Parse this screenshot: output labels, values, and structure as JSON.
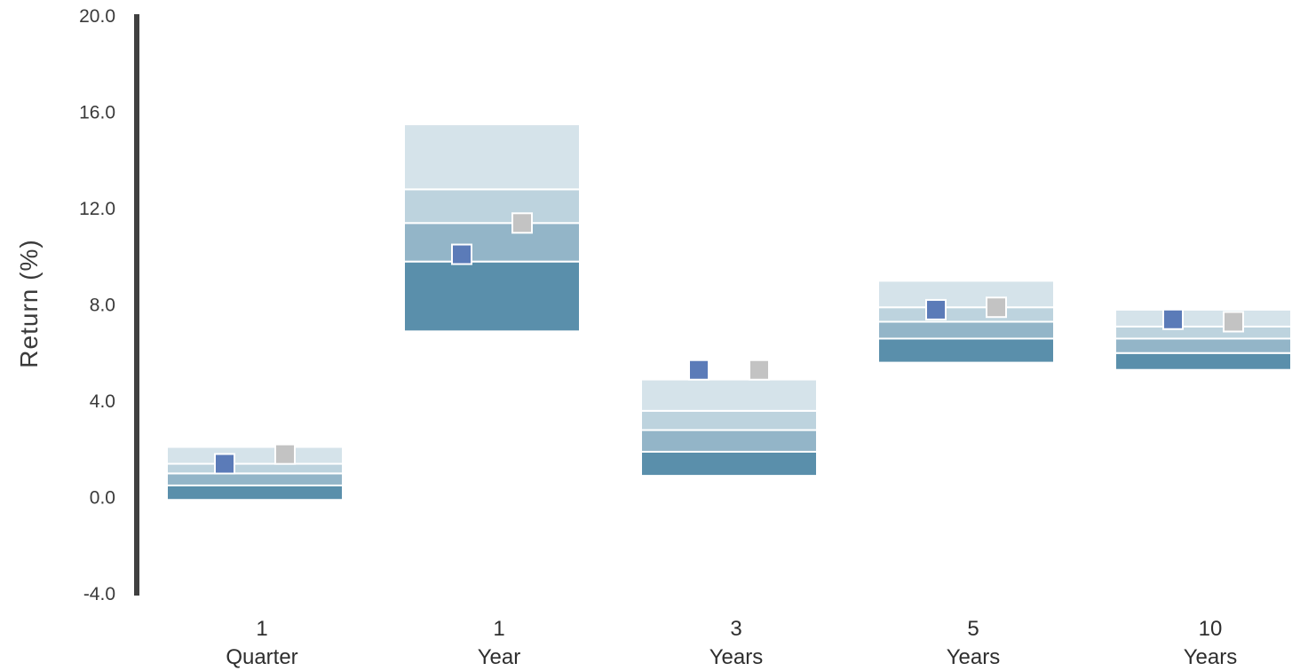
{
  "chart_data": {
    "type": "floating-bar",
    "title": "",
    "xlabel": "",
    "ylabel": "Return (%)",
    "ylim": [
      -4.0,
      20.0
    ],
    "yticks": [
      "-4.0",
      "0.0",
      "4.0",
      "8.0",
      "12.0",
      "16.0",
      "20.0"
    ],
    "grid": false,
    "legend": "none",
    "categories": [
      {
        "line1": "1",
        "line2": "Quarter"
      },
      {
        "line1": "1",
        "line2": "Year"
      },
      {
        "line1": "3",
        "line2": "Years"
      },
      {
        "line1": "5",
        "line2": "Years"
      },
      {
        "line1": "10",
        "line2": "Years"
      }
    ],
    "ranges": [
      {
        "bounds": [
          -0.1,
          0.5,
          1.0,
          1.4,
          2.1
        ]
      },
      {
        "bounds": [
          6.9,
          9.8,
          11.4,
          12.8,
          15.5
        ]
      },
      {
        "bounds": [
          0.9,
          1.9,
          2.8,
          3.6,
          4.9
        ]
      },
      {
        "bounds": [
          5.6,
          6.6,
          7.3,
          7.9,
          9.0
        ]
      },
      {
        "bounds": [
          5.3,
          6.0,
          6.6,
          7.1,
          7.8
        ]
      }
    ],
    "series": [
      {
        "marker": "square",
        "color": "#5b7bb8",
        "values": [
          1.4,
          10.1,
          5.3,
          7.8,
          7.4
        ]
      },
      {
        "marker": "square",
        "color": "#c3c3c3",
        "values": [
          1.8,
          11.4,
          5.3,
          7.9,
          7.3
        ]
      }
    ],
    "band_colors": [
      "#5a8fab",
      "#93b5c8",
      "#bdd3de",
      "#d5e3ea"
    ],
    "axis_color": "#404040"
  }
}
